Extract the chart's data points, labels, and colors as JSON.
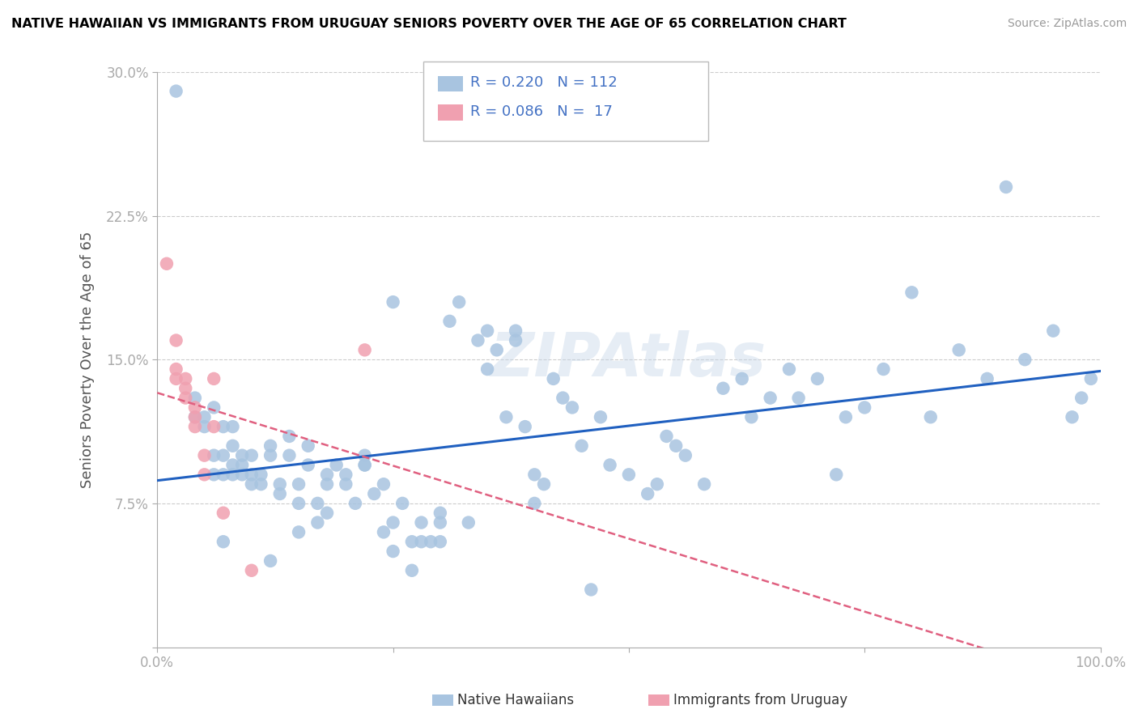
{
  "title": "NATIVE HAWAIIAN VS IMMIGRANTS FROM URUGUAY SENIORS POVERTY OVER THE AGE OF 65 CORRELATION CHART",
  "source": "Source: ZipAtlas.com",
  "ylabel": "Seniors Poverty Over the Age of 65",
  "legend_blue_r": "0.220",
  "legend_blue_n": "112",
  "legend_pink_r": "0.086",
  "legend_pink_n": "17",
  "legend_blue_label": "Native Hawaiians",
  "legend_pink_label": "Immigrants from Uruguay",
  "xlim": [
    0,
    1.0
  ],
  "ylim": [
    0,
    0.3
  ],
  "blue_color": "#a8c4e0",
  "pink_color": "#f0a0b0",
  "blue_line_color": "#2060c0",
  "pink_line_color": "#e06080",
  "blue_x": [
    0.02,
    0.04,
    0.04,
    0.05,
    0.05,
    0.06,
    0.06,
    0.06,
    0.07,
    0.07,
    0.07,
    0.08,
    0.08,
    0.08,
    0.09,
    0.09,
    0.09,
    0.1,
    0.1,
    0.1,
    0.11,
    0.11,
    0.12,
    0.12,
    0.13,
    0.13,
    0.14,
    0.14,
    0.15,
    0.15,
    0.16,
    0.16,
    0.17,
    0.17,
    0.18,
    0.18,
    0.19,
    0.2,
    0.2,
    0.21,
    0.22,
    0.22,
    0.23,
    0.24,
    0.25,
    0.25,
    0.26,
    0.27,
    0.28,
    0.28,
    0.29,
    0.3,
    0.3,
    0.31,
    0.32,
    0.33,
    0.34,
    0.35,
    0.36,
    0.37,
    0.38,
    0.38,
    0.39,
    0.4,
    0.4,
    0.41,
    0.42,
    0.43,
    0.44,
    0.45,
    0.46,
    0.47,
    0.48,
    0.5,
    0.52,
    0.53,
    0.54,
    0.55,
    0.56,
    0.58,
    0.6,
    0.62,
    0.63,
    0.65,
    0.67,
    0.68,
    0.7,
    0.72,
    0.73,
    0.75,
    0.77,
    0.8,
    0.82,
    0.85,
    0.88,
    0.9,
    0.92,
    0.95,
    0.97,
    0.98,
    0.99,
    0.25,
    0.35,
    0.27,
    0.24,
    0.15,
    0.08,
    0.07,
    0.12,
    0.18,
    0.22,
    0.3
  ],
  "blue_y": [
    0.29,
    0.12,
    0.13,
    0.115,
    0.12,
    0.125,
    0.09,
    0.1,
    0.09,
    0.1,
    0.115,
    0.09,
    0.095,
    0.105,
    0.09,
    0.095,
    0.1,
    0.085,
    0.09,
    0.1,
    0.085,
    0.09,
    0.1,
    0.105,
    0.08,
    0.085,
    0.1,
    0.11,
    0.075,
    0.085,
    0.095,
    0.105,
    0.065,
    0.075,
    0.085,
    0.09,
    0.095,
    0.085,
    0.09,
    0.075,
    0.095,
    0.1,
    0.08,
    0.085,
    0.05,
    0.065,
    0.075,
    0.04,
    0.055,
    0.065,
    0.055,
    0.065,
    0.07,
    0.17,
    0.18,
    0.065,
    0.16,
    0.165,
    0.155,
    0.12,
    0.16,
    0.165,
    0.115,
    0.075,
    0.09,
    0.085,
    0.14,
    0.13,
    0.125,
    0.105,
    0.03,
    0.12,
    0.095,
    0.09,
    0.08,
    0.085,
    0.11,
    0.105,
    0.1,
    0.085,
    0.135,
    0.14,
    0.12,
    0.13,
    0.145,
    0.13,
    0.14,
    0.09,
    0.12,
    0.125,
    0.145,
    0.185,
    0.12,
    0.155,
    0.14,
    0.24,
    0.15,
    0.165,
    0.12,
    0.13,
    0.14,
    0.18,
    0.145,
    0.055,
    0.06,
    0.06,
    0.115,
    0.055,
    0.045,
    0.07,
    0.095,
    0.055
  ],
  "pink_x": [
    0.01,
    0.02,
    0.02,
    0.02,
    0.03,
    0.03,
    0.03,
    0.04,
    0.04,
    0.04,
    0.05,
    0.05,
    0.06,
    0.06,
    0.07,
    0.1,
    0.22
  ],
  "pink_y": [
    0.2,
    0.14,
    0.145,
    0.16,
    0.13,
    0.135,
    0.14,
    0.115,
    0.12,
    0.125,
    0.09,
    0.1,
    0.115,
    0.14,
    0.07,
    0.04,
    0.155
  ]
}
